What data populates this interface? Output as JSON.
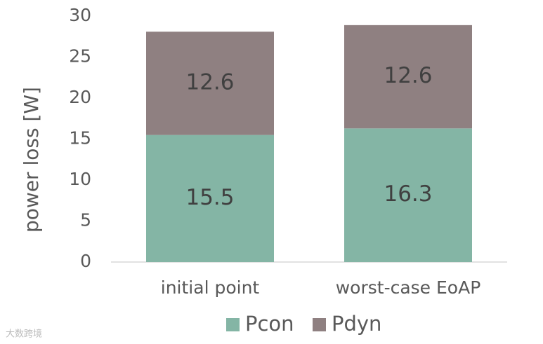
{
  "chart_data": {
    "type": "stacked-bar",
    "y_label": "power loss [W]",
    "categories": [
      "initial point",
      "worst-case EoAP"
    ],
    "series": [
      {
        "name": "Pcon",
        "color": "#84b5a5",
        "values": [
          15.5,
          16.3
        ]
      },
      {
        "name": "Pdyn",
        "color": "#8f8081",
        "values": [
          12.6,
          12.6
        ]
      }
    ],
    "ylim": [
      0,
      30
    ],
    "yticks": [
      0,
      5,
      10,
      15,
      20,
      25,
      30
    ],
    "grid": false,
    "legend": "bottom"
  },
  "watermark": "大数跨境"
}
